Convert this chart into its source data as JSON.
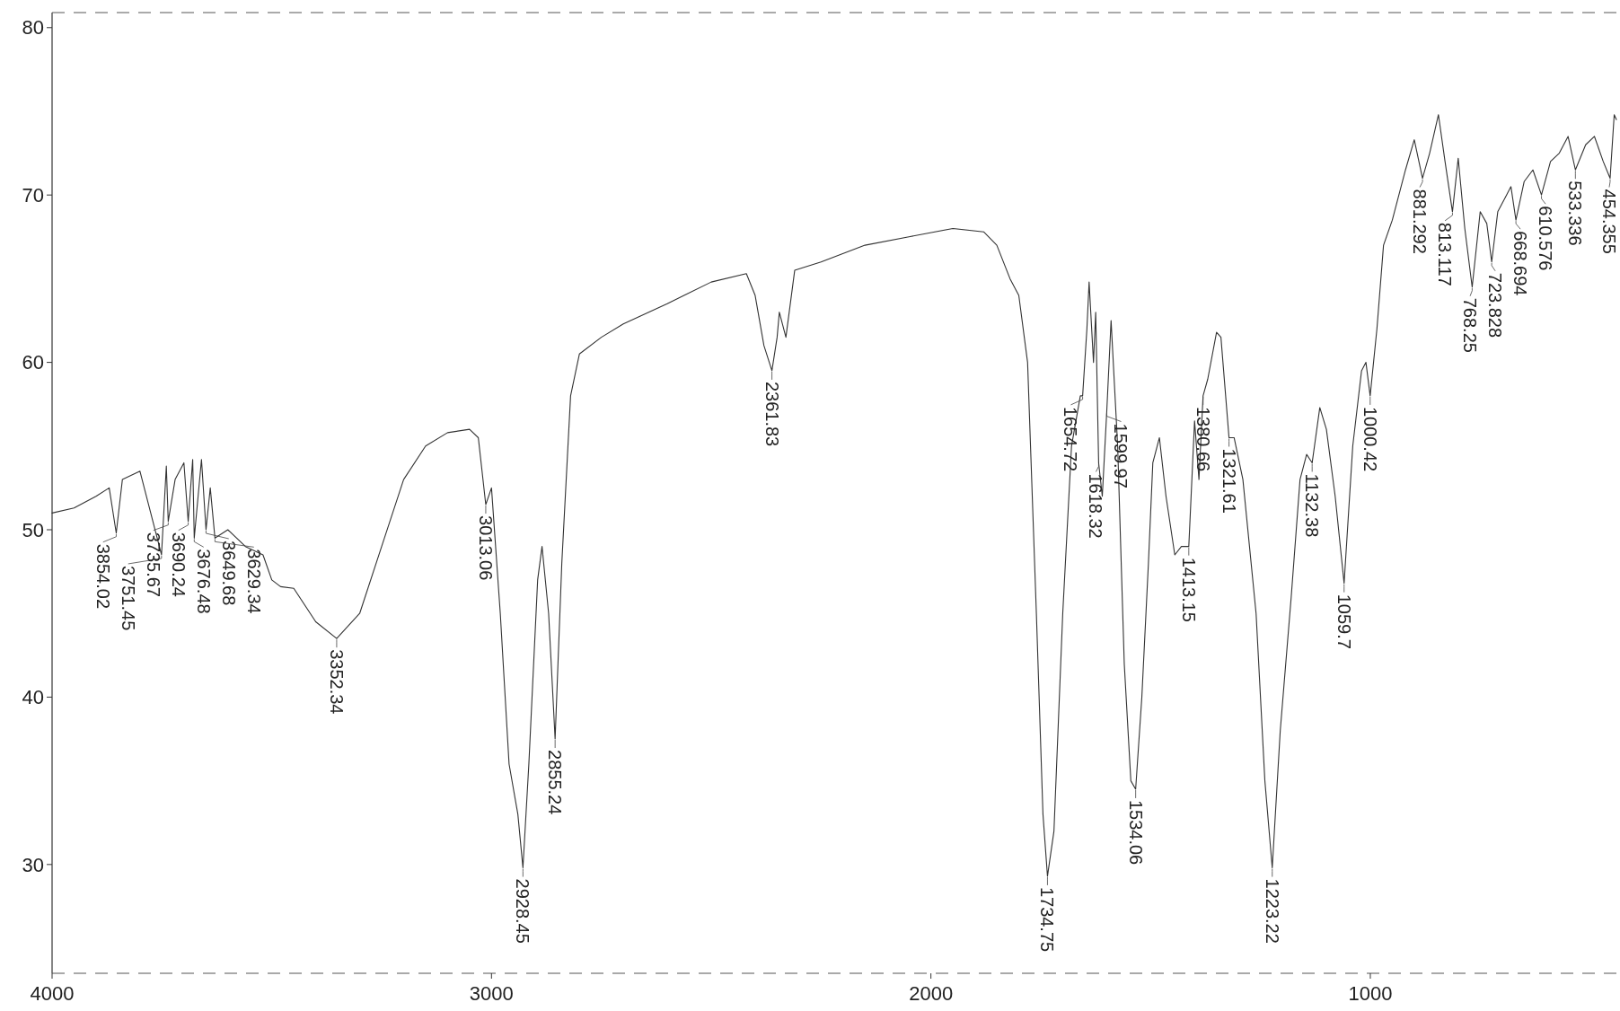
{
  "chart_data": {
    "type": "line",
    "x": [
      4000,
      3950,
      3900,
      3870,
      3854,
      3840,
      3800,
      3751,
      3740,
      3735.67,
      3720,
      3700,
      3690.24,
      3680,
      3676.48,
      3660,
      3649.68,
      3640,
      3629.34,
      3600,
      3560,
      3520,
      3500,
      3480,
      3450,
      3400,
      3352.34,
      3300,
      3250,
      3200,
      3150,
      3100,
      3050,
      3030,
      3013.06,
      3000,
      2980,
      2960,
      2940,
      2928.45,
      2915,
      2895,
      2885,
      2870,
      2855.24,
      2840,
      2820,
      2800,
      2750,
      2700,
      2600,
      2500,
      2420,
      2400,
      2380,
      2361.83,
      2350,
      2345,
      2330,
      2310,
      2250,
      2150,
      2050,
      1950,
      1880,
      1850,
      1820,
      1800,
      1780,
      1760,
      1745,
      1734.75,
      1720,
      1700,
      1680,
      1660,
      1654.72,
      1645,
      1640,
      1630,
      1625,
      1618.32,
      1610,
      1599.97,
      1590,
      1575,
      1560,
      1545,
      1534.06,
      1520,
      1505,
      1495,
      1480,
      1465,
      1445,
      1430,
      1413.15,
      1400,
      1390,
      1380.66,
      1370,
      1350,
      1340,
      1321.61,
      1310,
      1290,
      1260,
      1240,
      1223.22,
      1205,
      1180,
      1160,
      1145,
      1132.38,
      1115,
      1100,
      1080,
      1059.7,
      1040,
      1020,
      1010,
      1000.42,
      985,
      970,
      950,
      920,
      900,
      881.292,
      865,
      845,
      830,
      813.117,
      800,
      785,
      768.25,
      750,
      735,
      723.828,
      710,
      690,
      680,
      668.694,
      650,
      630,
      610.576,
      590,
      570,
      550,
      533.336,
      510,
      490,
      470,
      454.355,
      445,
      440
    ],
    "series": [
      {
        "color": "#333333",
        "values": [
          51,
          51.3,
          52,
          52.5,
          49.8,
          53,
          53.5,
          48.5,
          53.8,
          50.5,
          53,
          54,
          50.5,
          54.2,
          49.5,
          54.2,
          50,
          52.5,
          49.5,
          50,
          49,
          48.5,
          47,
          46.6,
          46.5,
          44.5,
          43.5,
          45,
          49,
          53,
          55,
          55.8,
          56,
          55.5,
          51.5,
          52.5,
          45,
          36,
          33,
          29.8,
          36,
          47,
          49,
          45,
          37.5,
          48,
          58,
          60.5,
          61.5,
          62.3,
          63.5,
          64.8,
          65.3,
          64,
          61,
          59.5,
          61.5,
          63,
          61.5,
          65.5,
          66,
          67,
          67.5,
          68,
          67.8,
          67,
          65,
          64,
          60,
          45,
          33,
          29.3,
          32,
          45,
          55,
          58,
          58,
          62,
          64.8,
          60,
          63,
          54,
          52,
          57,
          62.5,
          55,
          42,
          35,
          34.5,
          40,
          48,
          54,
          55.5,
          52,
          48.5,
          49,
          49,
          56.5,
          53,
          58,
          59,
          61.8,
          61.5,
          55.5,
          55.5,
          53,
          45,
          35,
          29.8,
          38,
          46,
          53,
          54.5,
          54,
          57.3,
          56,
          52,
          46.8,
          55,
          59.5,
          60,
          58,
          62,
          67,
          68.5,
          71.5,
          73.3,
          71,
          72.5,
          74.8,
          72,
          69,
          72.2,
          68,
          64.5,
          69,
          68.3,
          66,
          69,
          70,
          70.5,
          68.5,
          70.8,
          71.5,
          70,
          72,
          72.5,
          73.5,
          71.5,
          73,
          73.5,
          72,
          71,
          74.8,
          74.5
        ]
      }
    ],
    "xlim": [
      4000,
      440
    ],
    "ylim": [
      23.5,
      80.9
    ],
    "xticks": [
      4000,
      3000,
      2000,
      1000
    ],
    "yticks": [
      30,
      40,
      50,
      60,
      70,
      80
    ],
    "marker": "none",
    "line_style": "solid",
    "annotations": [
      {
        "text": "3854.02",
        "x": 3854,
        "y": 49.8
      },
      {
        "text": "3751.45",
        "x": 3751,
        "y": 48.5
      },
      {
        "text": "3735.67",
        "x": 3735.67,
        "y": 50.5
      },
      {
        "text": "3690.24",
        "x": 3690.24,
        "y": 50.5
      },
      {
        "text": "3676.48",
        "x": 3676.48,
        "y": 49.5
      },
      {
        "text": "3649.68",
        "x": 3649.68,
        "y": 50
      },
      {
        "text": "3629.34",
        "x": 3629.34,
        "y": 49.5
      },
      {
        "text": "3352.34",
        "x": 3352.34,
        "y": 43.5
      },
      {
        "text": "3013.06",
        "x": 3013.06,
        "y": 51.5
      },
      {
        "text": "2928.45",
        "x": 2928.45,
        "y": 29.8
      },
      {
        "text": "2855.24",
        "x": 2855.24,
        "y": 37.5
      },
      {
        "text": "2361.83",
        "x": 2361.83,
        "y": 59.5
      },
      {
        "text": "1734.75",
        "x": 1734.75,
        "y": 29.3
      },
      {
        "text": "1654.72",
        "x": 1654.72,
        "y": 58
      },
      {
        "text": "1618.32",
        "x": 1618.32,
        "y": 54
      },
      {
        "text": "1599.97",
        "x": 1599.97,
        "y": 57
      },
      {
        "text": "1534.06",
        "x": 1534.06,
        "y": 34.5
      },
      {
        "text": "1413.15",
        "x": 1413.15,
        "y": 49
      },
      {
        "text": "1380.66",
        "x": 1380.66,
        "y": 58
      },
      {
        "text": "1321.61",
        "x": 1321.61,
        "y": 55.5
      },
      {
        "text": "1223.22",
        "x": 1223.22,
        "y": 29.8
      },
      {
        "text": "1132.38",
        "x": 1132.38,
        "y": 54
      },
      {
        "text": "1059.7",
        "x": 1059.7,
        "y": 46.8
      },
      {
        "text": "1000.42",
        "x": 1000.42,
        "y": 58
      },
      {
        "text": "881.292",
        "x": 881.292,
        "y": 71
      },
      {
        "text": "813.117",
        "x": 813.117,
        "y": 69
      },
      {
        "text": "768.25",
        "x": 768.25,
        "y": 64.5
      },
      {
        "text": "723.828",
        "x": 723.828,
        "y": 66
      },
      {
        "text": "668.694",
        "x": 668.694,
        "y": 68.5
      },
      {
        "text": "610.576",
        "x": 610.576,
        "y": 70
      },
      {
        "text": "533.336",
        "x": 533.336,
        "y": 71.5
      },
      {
        "text": "454.355",
        "x": 454.355,
        "y": 71
      }
    ]
  }
}
